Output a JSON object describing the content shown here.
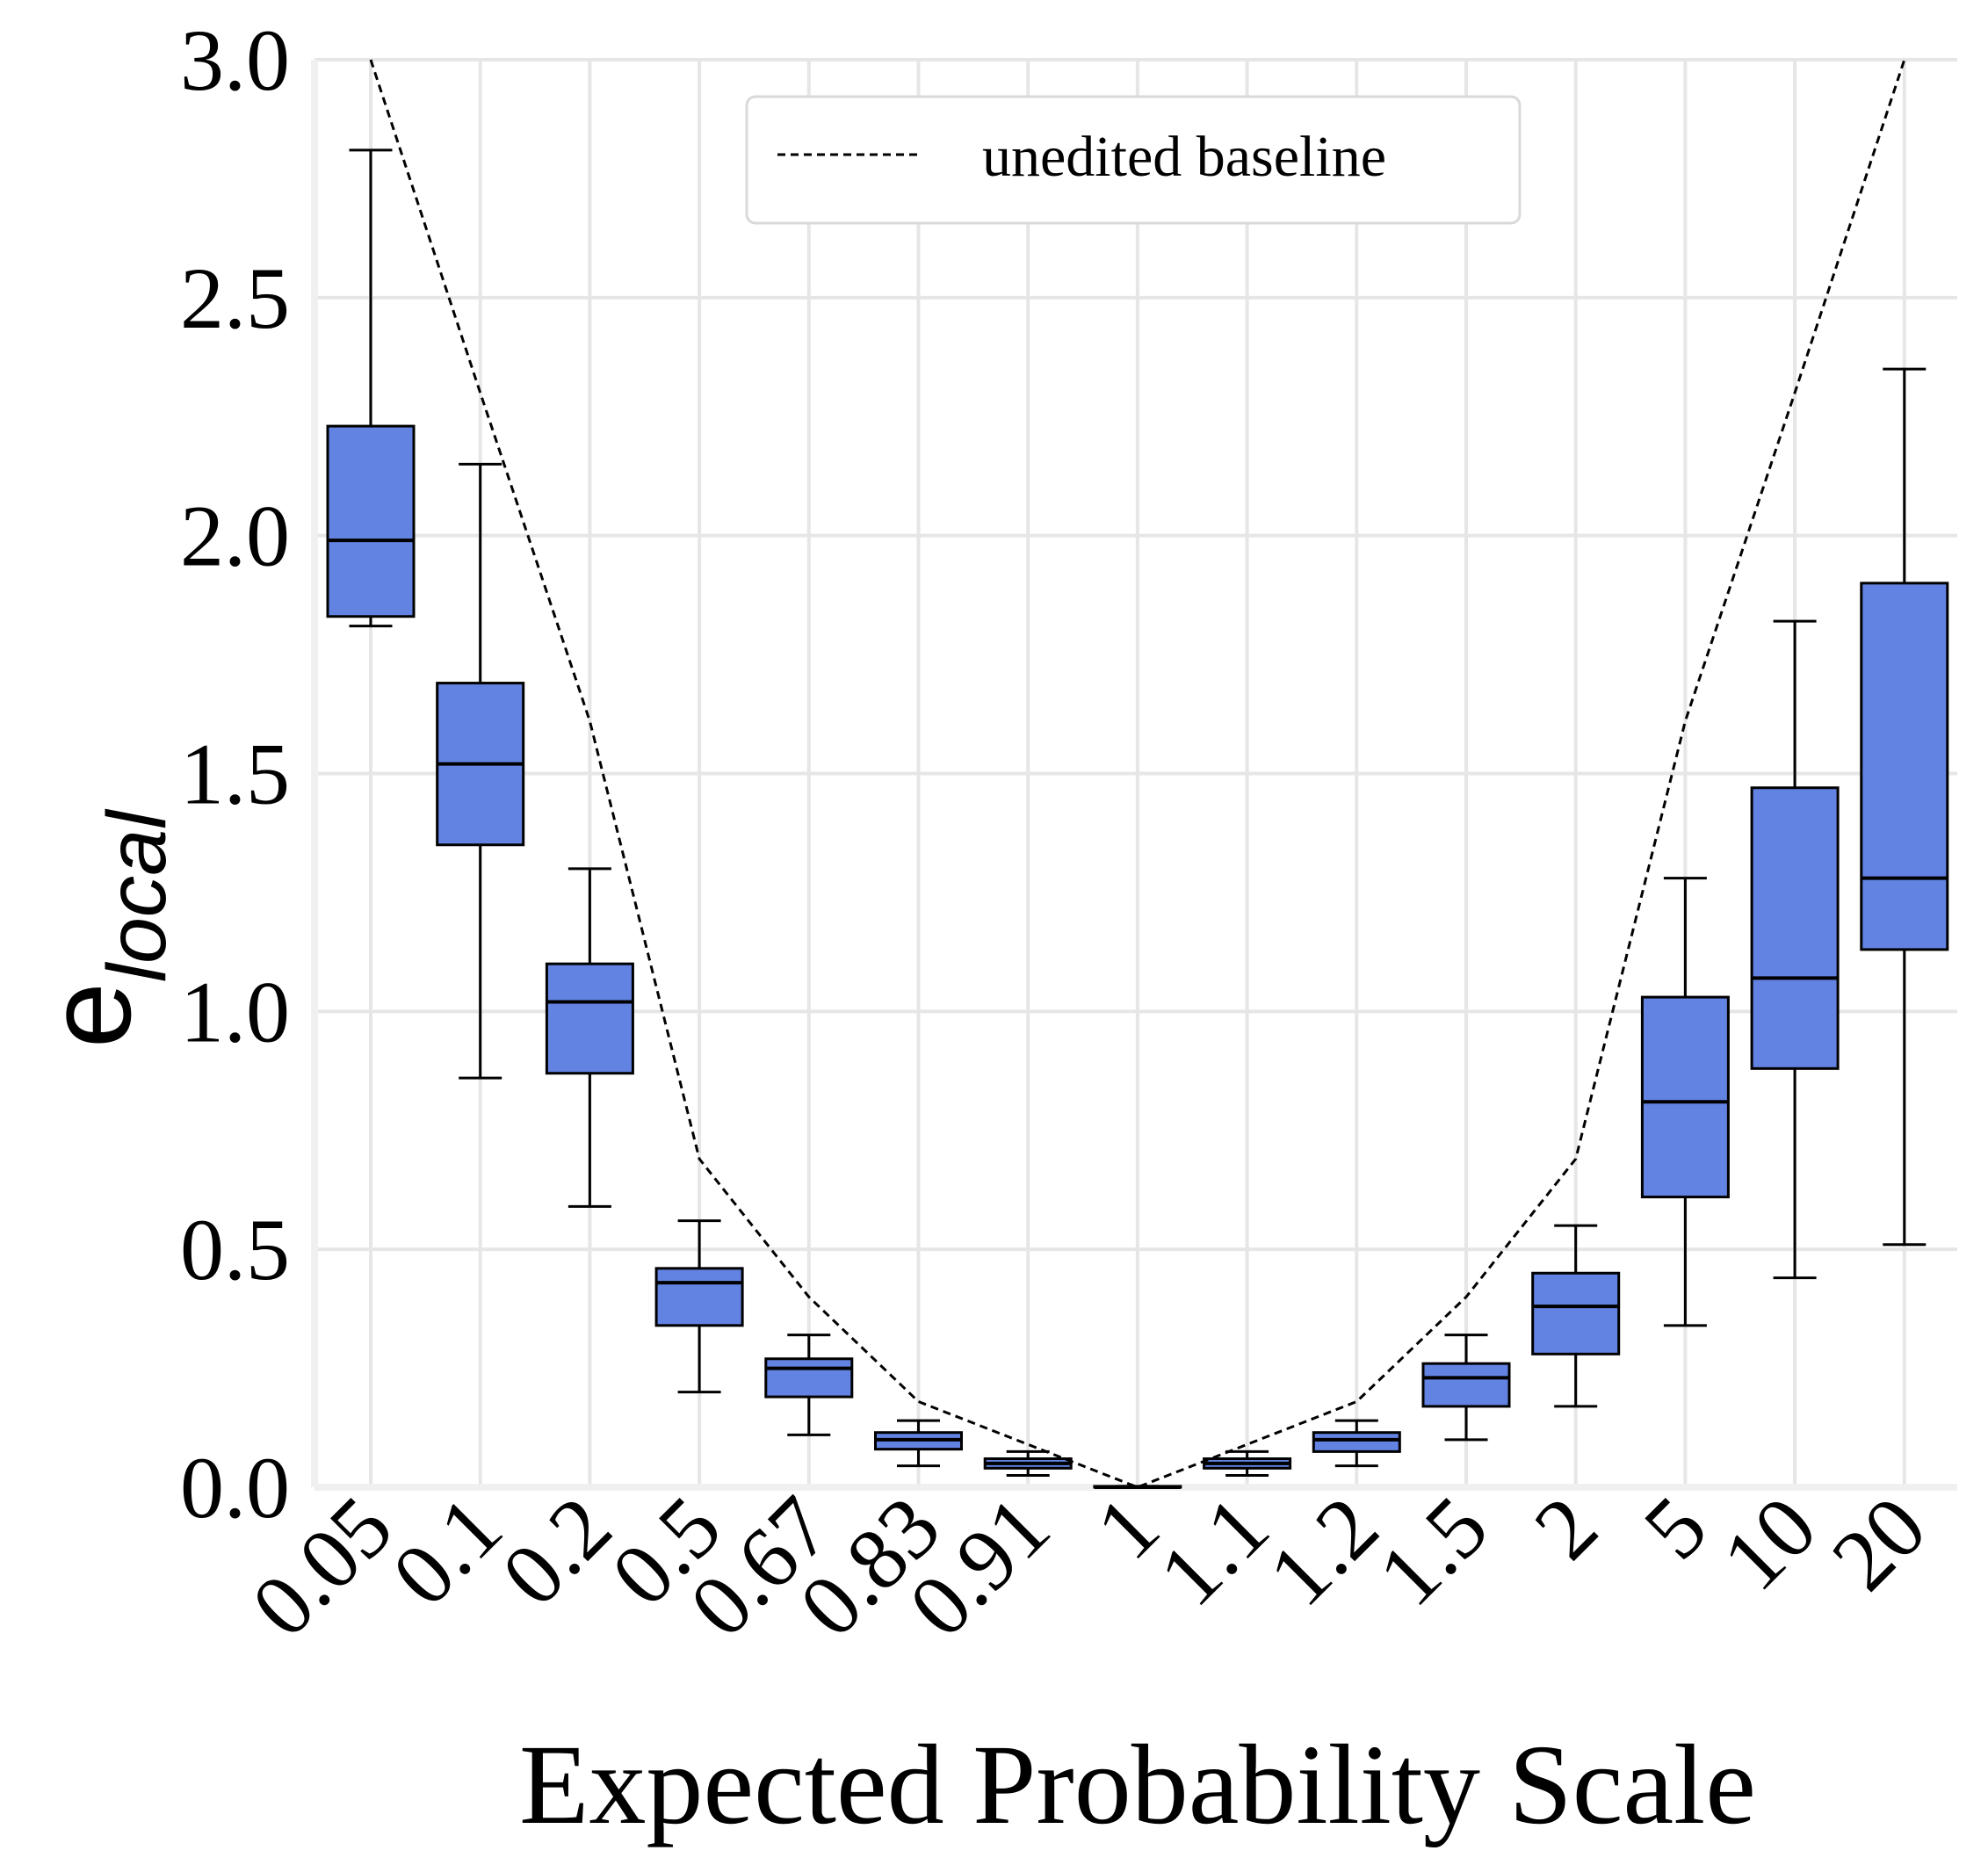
{
  "chart_data": {
    "type": "box",
    "title": "",
    "xlabel": "Expected Probability Scale",
    "ylabel_base": "e",
    "ylabel_subscript": "local",
    "ylim": [
      0,
      3.0
    ],
    "yticks": [
      "0.0",
      "0.5",
      "1.0",
      "1.5",
      "2.0",
      "2.5",
      "3.0"
    ],
    "ytick_values": [
      0,
      0.5,
      1.0,
      1.5,
      2.0,
      2.5,
      3.0
    ],
    "categories": [
      "0.05",
      "0.1",
      "0.2",
      "0.5",
      "0.67",
      "0.83",
      "0.91",
      "1",
      "1.1",
      "1.2",
      "1.5",
      "2",
      "5",
      "10",
      "20"
    ],
    "box_color": "#6383e2",
    "grid": true,
    "legend": {
      "placement": "top-center",
      "entries": [
        "unedited baseline"
      ]
    },
    "boxes": [
      {
        "whisker_low": 1.81,
        "q1": 1.83,
        "median": 1.99,
        "q3": 2.23,
        "whisker_high": 2.81
      },
      {
        "whisker_low": 0.86,
        "q1": 1.35,
        "median": 1.52,
        "q3": 1.69,
        "whisker_high": 2.15
      },
      {
        "whisker_low": 0.59,
        "q1": 0.87,
        "median": 1.02,
        "q3": 1.1,
        "whisker_high": 1.3
      },
      {
        "whisker_low": 0.2,
        "q1": 0.34,
        "median": 0.43,
        "q3": 0.46,
        "whisker_high": 0.56
      },
      {
        "whisker_low": 0.11,
        "q1": 0.19,
        "median": 0.25,
        "q3": 0.27,
        "whisker_high": 0.32
      },
      {
        "whisker_low": 0.045,
        "q1": 0.08,
        "median": 0.1,
        "q3": 0.115,
        "whisker_high": 0.14
      },
      {
        "whisker_low": 0.025,
        "q1": 0.04,
        "median": 0.05,
        "q3": 0.06,
        "whisker_high": 0.075
      },
      {
        "whisker_low": 0.0,
        "q1": 0.0,
        "median": 0.0,
        "q3": 0.002,
        "whisker_high": 0.002
      },
      {
        "whisker_low": 0.025,
        "q1": 0.04,
        "median": 0.05,
        "q3": 0.06,
        "whisker_high": 0.075
      },
      {
        "whisker_low": 0.045,
        "q1": 0.075,
        "median": 0.1,
        "q3": 0.115,
        "whisker_high": 0.14
      },
      {
        "whisker_low": 0.1,
        "q1": 0.17,
        "median": 0.23,
        "q3": 0.26,
        "whisker_high": 0.32
      },
      {
        "whisker_low": 0.17,
        "q1": 0.28,
        "median": 0.38,
        "q3": 0.45,
        "whisker_high": 0.55
      },
      {
        "whisker_low": 0.34,
        "q1": 0.61,
        "median": 0.81,
        "q3": 1.03,
        "whisker_high": 1.28
      },
      {
        "whisker_low": 0.44,
        "q1": 0.88,
        "median": 1.07,
        "q3": 1.47,
        "whisker_high": 1.82
      },
      {
        "whisker_low": 0.51,
        "q1": 1.13,
        "median": 1.28,
        "q3": 1.9,
        "whisker_high": 2.35
      }
    ],
    "series": [
      {
        "name": "unedited baseline",
        "style": "dashed",
        "values": [
          3.0,
          2.3,
          1.61,
          0.69,
          0.4,
          0.18,
          0.09,
          0.0,
          0.09,
          0.18,
          0.4,
          0.69,
          1.61,
          2.3,
          3.0
        ]
      }
    ]
  }
}
